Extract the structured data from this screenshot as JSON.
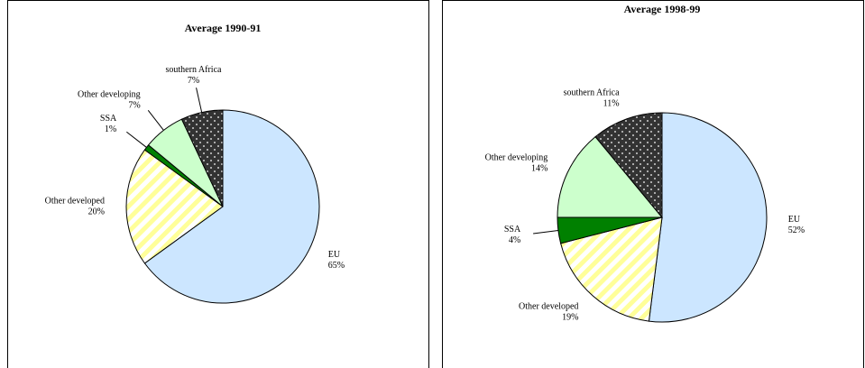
{
  "chart_data": [
    {
      "type": "pie",
      "title": "Average 1990-91",
      "categories": [
        "EU",
        "Other developed",
        "SSA",
        "Other developing",
        "southern Africa"
      ],
      "values": [
        65,
        20,
        1,
        7,
        7
      ],
      "value_labels": [
        "65%",
        "20%",
        "1%",
        "7%",
        "7%"
      ],
      "colors": [
        "#cce6ff",
        "#ffffcc",
        "#008000",
        "#ccffcc",
        "#333333"
      ],
      "patterns": [
        null,
        "stripes",
        null,
        null,
        "dots"
      ]
    },
    {
      "type": "pie",
      "title": "Average 1998-99",
      "categories": [
        "EU",
        "Other developed",
        "SSA",
        "Other developing",
        "southern Africa"
      ],
      "values": [
        52,
        19,
        4,
        14,
        11
      ],
      "value_labels": [
        "52%",
        "19%",
        "4%",
        "14%",
        "11%"
      ],
      "colors": [
        "#cce6ff",
        "#ffffcc",
        "#008000",
        "#ccffcc",
        "#333333"
      ],
      "patterns": [
        null,
        "stripes",
        null,
        null,
        "dots"
      ]
    }
  ]
}
